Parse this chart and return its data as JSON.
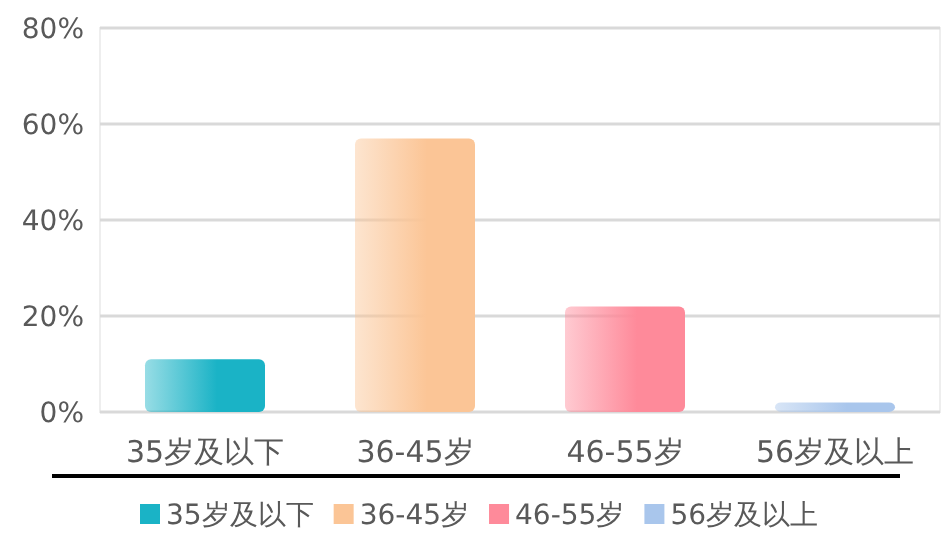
{
  "chart_data": {
    "type": "bar",
    "categories": [
      "35岁及以下",
      "36-45岁",
      "46-55岁",
      "56岁及以上"
    ],
    "series": [
      {
        "name": "35岁及以下",
        "color": "#1ab3c6",
        "values": [
          11,
          null,
          null,
          null
        ]
      },
      {
        "name": "36-45岁",
        "color": "#fbc596",
        "values": [
          null,
          57,
          null,
          null
        ]
      },
      {
        "name": "46-55岁",
        "color": "#fe8a9a",
        "values": [
          null,
          null,
          22,
          null
        ]
      },
      {
        "name": "56岁及以上",
        "color": "#a9c6ec",
        "values": [
          null,
          null,
          null,
          2
        ]
      }
    ],
    "ylim": [
      0,
      80
    ],
    "yticks": [
      {
        "value": 0,
        "label": "0%"
      },
      {
        "value": 20,
        "label": "20%"
      },
      {
        "value": 40,
        "label": "40%"
      },
      {
        "value": 60,
        "label": "60%"
      },
      {
        "value": 80,
        "label": "80%"
      }
    ],
    "grid": "y",
    "legend": "bottom"
  }
}
